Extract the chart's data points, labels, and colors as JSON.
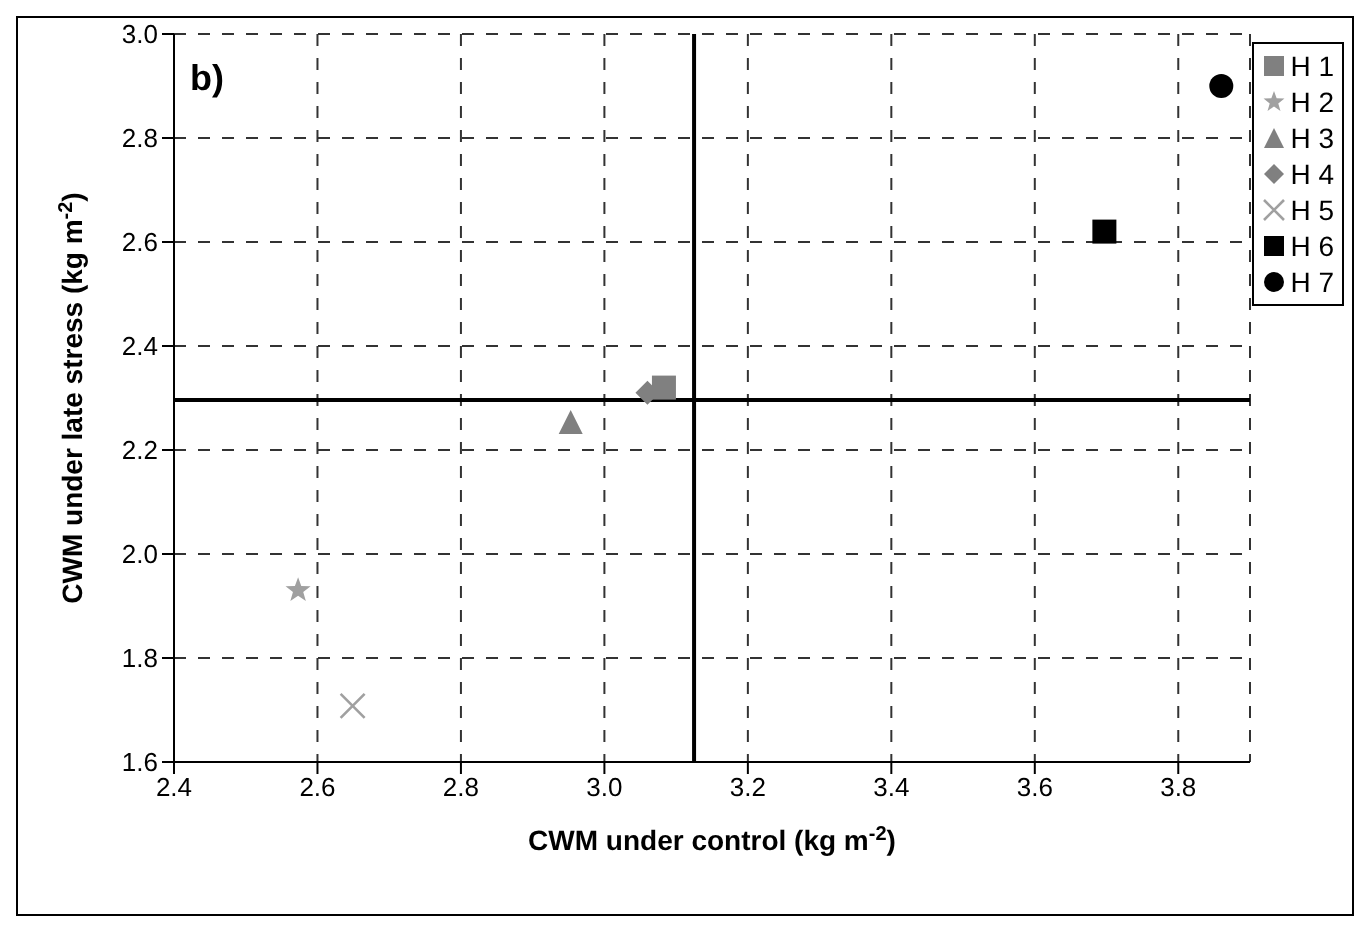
{
  "chart_data": {
    "type": "scatter",
    "xlabel": "CWM under control (kg m$^{-2}$)",
    "ylabel": "CWM under late stress (kg m$^{-2}$)",
    "annotations": [
      "b)"
    ],
    "xlim": [
      2.4,
      3.9
    ],
    "xticks": [
      {
        "value": 2.4,
        "label": "2.4"
      },
      {
        "value": 2.6,
        "label": "2.6"
      },
      {
        "value": 2.8,
        "label": "2.8"
      },
      {
        "value": 3.0,
        "label": "3.0"
      },
      {
        "value": 3.2,
        "label": "3.2"
      },
      {
        "value": 3.4,
        "label": "3.4"
      },
      {
        "value": 3.6,
        "label": "3.6"
      },
      {
        "value": 3.8,
        "label": "3.8"
      }
    ],
    "ylim": [
      1.6,
      3.0
    ],
    "yticks": [
      {
        "value": 1.6,
        "label": "1.6"
      },
      {
        "value": 1.8,
        "label": "1.8"
      },
      {
        "value": 2.0,
        "label": "2.0"
      },
      {
        "value": 2.2,
        "label": "2.2"
      },
      {
        "value": 2.4,
        "label": "2.4"
      },
      {
        "value": 2.6,
        "label": "2.6"
      },
      {
        "value": 2.8,
        "label": "2.8"
      },
      {
        "value": 3.0,
        "label": "3.0"
      }
    ],
    "grid": true,
    "legend": "top right",
    "ref_lines": [
      {
        "axis": "x",
        "value": 3.125,
        "color": "#000000"
      },
      {
        "axis": "y",
        "value": 2.296,
        "color": "#000000"
      }
    ],
    "series": [
      {
        "name": "H 1",
        "color": "#808080",
        "marker": "square",
        "x": [
          3.083
        ],
        "values": [
          2.32
        ]
      },
      {
        "name": "H 2",
        "color": "#a0a0a0",
        "marker": "star",
        "x": [
          2.573
        ],
        "values": [
          1.93
        ]
      },
      {
        "name": "H 3",
        "color": "#808080",
        "marker": "triangle",
        "x": [
          2.953
        ],
        "values": [
          2.254
        ]
      },
      {
        "name": "H 4",
        "color": "#808080",
        "marker": "diamond",
        "x": [
          3.06
        ],
        "values": [
          2.31
        ]
      },
      {
        "name": "H 5",
        "color": "#a0a0a0",
        "marker": "cross",
        "x": [
          2.649
        ],
        "values": [
          1.708
        ]
      },
      {
        "name": "H 6",
        "color": "#000000",
        "marker": "square",
        "x": [
          3.697
        ],
        "values": [
          2.62
        ]
      },
      {
        "name": "H 7",
        "color": "#000000",
        "marker": "circle",
        "x": [
          3.86
        ],
        "values": [
          2.9
        ]
      }
    ]
  }
}
